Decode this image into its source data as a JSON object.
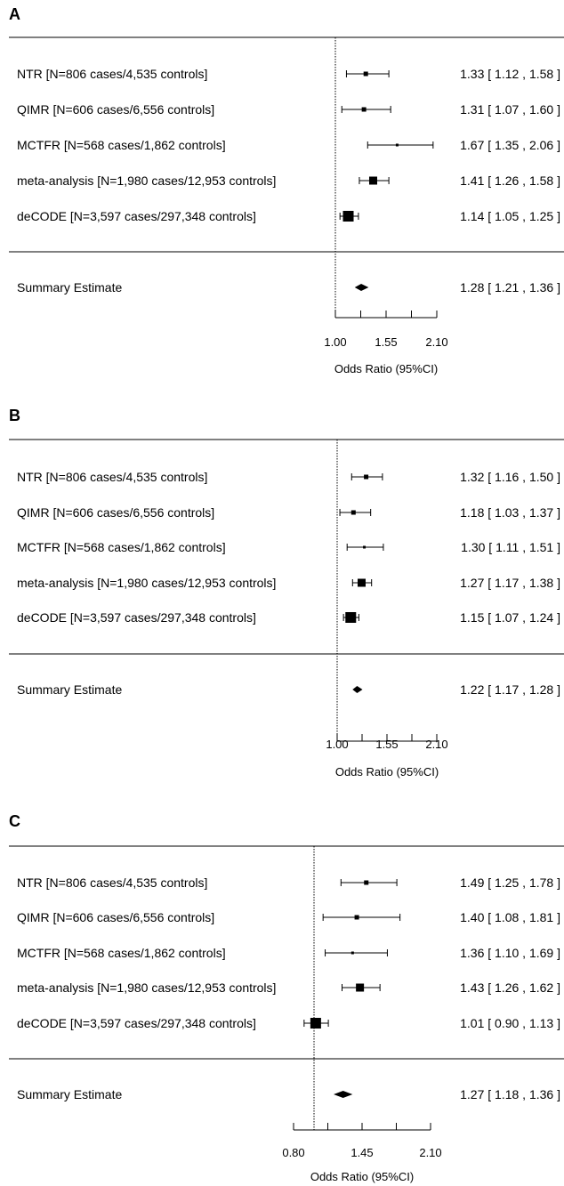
{
  "chart_data": [
    {
      "type": "forest",
      "panel_label": "A",
      "xlabel": "Odds Ratio (95%CI)",
      "xticks": [
        "1.00",
        "1.55",
        "2.10"
      ],
      "xlim": [
        1.0,
        2.1
      ],
      "reference_line": 1.0,
      "rows": [
        {
          "label": "NTR [N=806 cases/4,535 controls]",
          "estimate": 1.33,
          "ci_low": 1.12,
          "ci_high": 1.58,
          "ci_text": "1.33 [ 1.12 , 1.58 ]"
        },
        {
          "label": "QIMR [N=606 cases/6,556 controls]",
          "estimate": 1.31,
          "ci_low": 1.07,
          "ci_high": 1.6,
          "ci_text": "1.31 [ 1.07 , 1.60 ]"
        },
        {
          "label": "MCTFR [N=568 cases/1,862 controls]",
          "estimate": 1.67,
          "ci_low": 1.35,
          "ci_high": 2.06,
          "ci_text": "1.67 [ 1.35 , 2.06 ]"
        },
        {
          "label": "meta-analysis [N=1,980 cases/12,953 controls]",
          "estimate": 1.41,
          "ci_low": 1.26,
          "ci_high": 1.58,
          "ci_text": "1.41 [ 1.26 , 1.58 ]"
        },
        {
          "label": "deCODE [N=3,597 cases/297,348 controls]",
          "estimate": 1.14,
          "ci_low": 1.05,
          "ci_high": 1.25,
          "ci_text": "1.14 [ 1.05 , 1.25 ]"
        }
      ],
      "summary": {
        "label": "Summary Estimate",
        "estimate": 1.28,
        "ci_low": 1.21,
        "ci_high": 1.36,
        "ci_text": "1.28 [ 1.21 , 1.36 ]"
      }
    },
    {
      "type": "forest",
      "panel_label": "B",
      "xlabel": "Odds Ratio (95%CI)",
      "xticks": [
        "1.00",
        "1.55",
        "2.10"
      ],
      "xlim": [
        1.0,
        2.1
      ],
      "reference_line": 1.0,
      "rows": [
        {
          "label": "NTR [N=806 cases/4,535 controls]",
          "estimate": 1.32,
          "ci_low": 1.16,
          "ci_high": 1.5,
          "ci_text": "1.32 [ 1.16 , 1.50 ]"
        },
        {
          "label": "QIMR [N=606 cases/6,556 controls]",
          "estimate": 1.18,
          "ci_low": 1.03,
          "ci_high": 1.37,
          "ci_text": "1.18 [ 1.03 , 1.37 ]"
        },
        {
          "label": "MCTFR [N=568 cases/1,862 controls]",
          "estimate": 1.3,
          "ci_low": 1.11,
          "ci_high": 1.51,
          "ci_text": "1.30 [ 1.11 , 1.51 ]"
        },
        {
          "label": "meta-analysis [N=1,980 cases/12,953 controls]",
          "estimate": 1.27,
          "ci_low": 1.17,
          "ci_high": 1.38,
          "ci_text": "1.27 [ 1.17 , 1.38 ]"
        },
        {
          "label": "deCODE [N=3,597 cases/297,348 controls]",
          "estimate": 1.15,
          "ci_low": 1.07,
          "ci_high": 1.24,
          "ci_text": "1.15 [ 1.07 , 1.24 ]"
        }
      ],
      "summary": {
        "label": "Summary Estimate",
        "estimate": 1.22,
        "ci_low": 1.17,
        "ci_high": 1.28,
        "ci_text": "1.22 [ 1.17 , 1.28 ]"
      }
    },
    {
      "type": "forest",
      "panel_label": "C",
      "xlabel": "Odds Ratio (95%CI)",
      "xticks": [
        "0.80",
        "1.45",
        "2.10"
      ],
      "xlim": [
        0.8,
        2.1
      ],
      "reference_line": 1.0,
      "rows": [
        {
          "label": "NTR [N=806 cases/4,535 controls]",
          "estimate": 1.49,
          "ci_low": 1.25,
          "ci_high": 1.78,
          "ci_text": "1.49 [ 1.25 , 1.78 ]"
        },
        {
          "label": "QIMR [N=606 cases/6,556 controls]",
          "estimate": 1.4,
          "ci_low": 1.08,
          "ci_high": 1.81,
          "ci_text": "1.40 [ 1.08 , 1.81 ]"
        },
        {
          "label": "MCTFR [N=568 cases/1,862 controls]",
          "estimate": 1.36,
          "ci_low": 1.1,
          "ci_high": 1.69,
          "ci_text": "1.36 [ 1.10 , 1.69 ]"
        },
        {
          "label": "meta-analysis [N=1,980 cases/12,953 controls]",
          "estimate": 1.43,
          "ci_low": 1.26,
          "ci_high": 1.62,
          "ci_text": "1.43 [ 1.26 , 1.62 ]"
        },
        {
          "label": "deCODE [N=3,597 cases/297,348 controls]",
          "estimate": 1.01,
          "ci_low": 0.9,
          "ci_high": 1.13,
          "ci_text": "1.01 [ 0.90 , 1.13 ]"
        }
      ],
      "summary": {
        "label": "Summary Estimate",
        "estimate": 1.27,
        "ci_low": 1.18,
        "ci_high": 1.36,
        "ci_text": "1.27 [ 1.18 , 1.36 ]"
      }
    }
  ]
}
